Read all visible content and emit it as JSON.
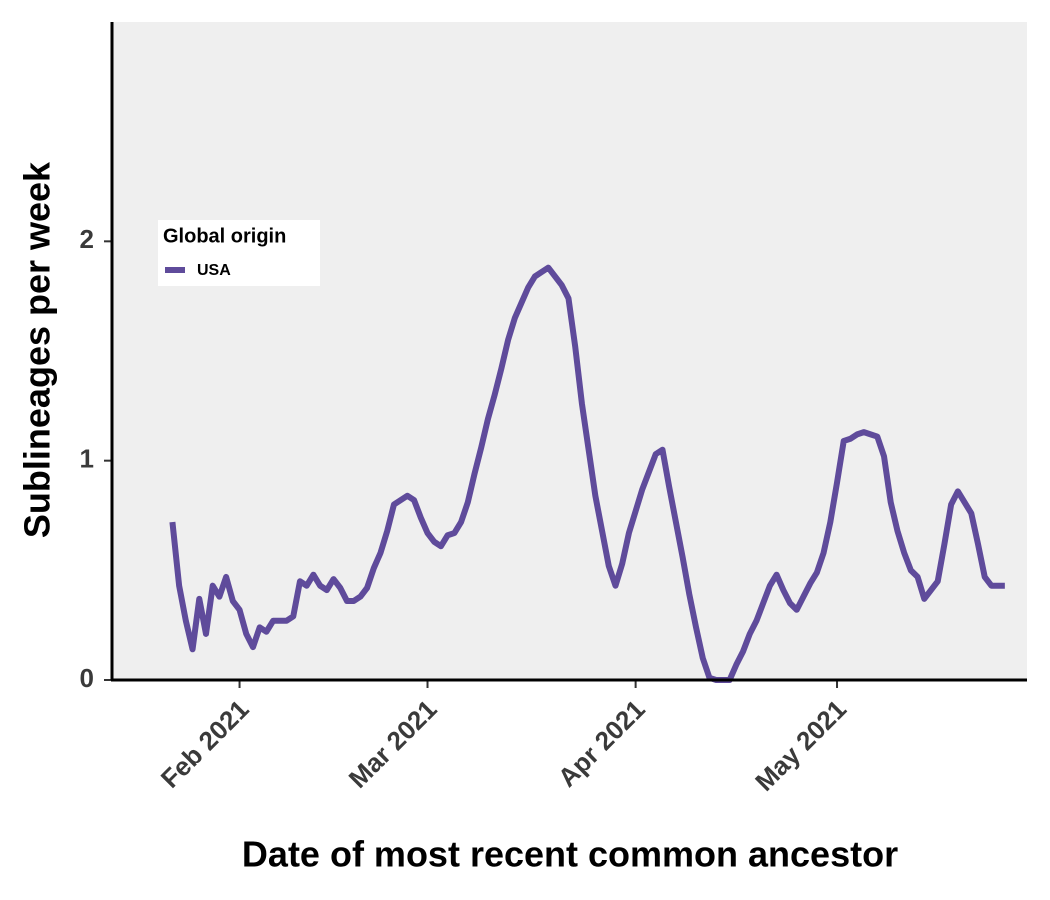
{
  "chart_data": {
    "type": "line",
    "x_label": "Date of most recent common ancestor",
    "y_label": "Sublineages per week",
    "x": [
      22,
      23,
      24,
      25,
      26,
      27,
      28,
      29,
      30,
      31,
      32,
      33,
      34,
      35,
      36,
      37,
      39,
      40,
      41,
      42,
      43,
      44,
      45,
      46,
      47,
      48,
      49,
      50,
      51,
      52,
      53,
      54,
      55,
      56,
      57,
      58,
      59,
      60,
      61,
      62,
      63,
      64,
      65,
      66,
      67,
      68,
      69,
      70,
      71,
      72,
      73,
      74,
      75,
      76,
      77,
      78,
      79,
      80,
      81,
      82,
      83,
      84,
      85,
      86,
      87,
      88,
      89,
      90,
      91,
      92,
      93,
      94,
      95,
      96,
      97,
      98,
      99,
      100,
      101,
      102,
      103,
      105,
      106,
      107,
      108,
      109,
      110,
      111,
      112,
      113,
      114,
      115,
      116,
      117,
      118,
      119,
      120,
      121,
      122,
      123,
      124,
      125,
      126,
      127,
      128,
      129,
      130,
      131,
      132,
      133,
      134,
      135,
      136,
      137,
      138,
      139,
      140,
      141,
      142,
      143,
      144,
      146
    ],
    "series": [
      {
        "name": "USA",
        "color": "#5f4b9b",
        "values": [
          0.72,
          0.43,
          0.27,
          0.14,
          0.37,
          0.21,
          0.43,
          0.38,
          0.47,
          0.36,
          0.32,
          0.21,
          0.15,
          0.24,
          0.22,
          0.27,
          0.27,
          0.29,
          0.45,
          0.43,
          0.48,
          0.43,
          0.41,
          0.46,
          0.42,
          0.36,
          0.36,
          0.38,
          0.42,
          0.51,
          0.58,
          0.68,
          0.8,
          0.82,
          0.84,
          0.82,
          0.74,
          0.67,
          0.63,
          0.61,
          0.66,
          0.67,
          0.72,
          0.81,
          0.94,
          1.06,
          1.19,
          1.3,
          1.42,
          1.55,
          1.65,
          1.72,
          1.79,
          1.84,
          1.86,
          1.88,
          1.84,
          1.8,
          1.74,
          1.52,
          1.26,
          1.05,
          0.84,
          0.68,
          0.52,
          0.43,
          0.53,
          0.67,
          0.77,
          0.87,
          0.95,
          1.03,
          1.05,
          0.88,
          0.72,
          0.56,
          0.39,
          0.24,
          0.1,
          0.01,
          0,
          0,
          0.07,
          0.13,
          0.21,
          0.27,
          0.35,
          0.43,
          0.48,
          0.41,
          0.35,
          0.32,
          0.38,
          0.44,
          0.49,
          0.58,
          0.72,
          0.9,
          1.09,
          1.1,
          1.12,
          1.13,
          1.12,
          1.11,
          1.02,
          0.81,
          0.68,
          0.58,
          0.5,
          0.47,
          0.37,
          0.41,
          0.45,
          0.62,
          0.8,
          0.86,
          0.81,
          0.76,
          0.62,
          0.47,
          0.43,
          0.43
        ]
      }
    ],
    "xlim": [
      13,
      149.3
    ],
    "xticks": [
      {
        "value": 32,
        "label": "Feb 2021"
      },
      {
        "value": 60,
        "label": "Mar 2021"
      },
      {
        "value": 91,
        "label": "Apr 2021"
      },
      {
        "value": 121,
        "label": "May 2021"
      }
    ],
    "ylim": [
      0,
      3
    ],
    "yticks": [
      0,
      1,
      2
    ],
    "legend": {
      "title": "Global origin"
    },
    "background": "#efefef"
  }
}
